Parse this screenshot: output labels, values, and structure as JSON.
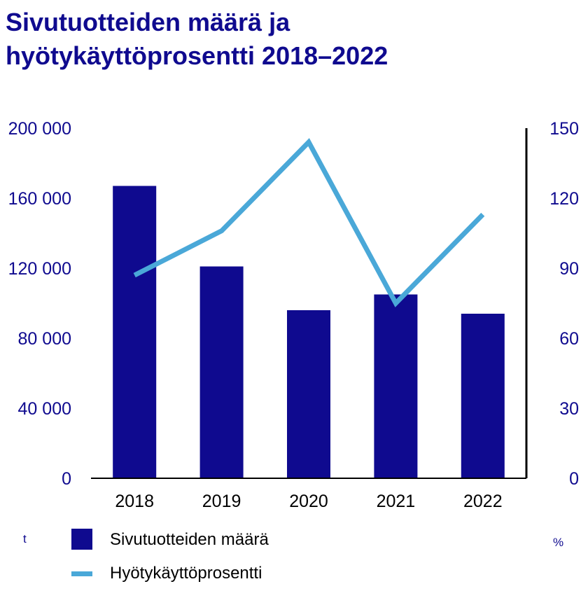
{
  "colors": {
    "title": "#0f0a8f",
    "bar": "#0f0a8f",
    "line": "#4aa8d8",
    "axis": "#000000"
  },
  "chart_data": {
    "type": "bar",
    "title_lines": [
      "Sivutuotteiden määrä ja",
      "hyötykäyttöprosentti 2018–2022"
    ],
    "categories": [
      "2018",
      "2019",
      "2020",
      "2021",
      "2022"
    ],
    "series": [
      {
        "name": "Sivutuotteiden määrä",
        "type": "bar",
        "axis": "left",
        "values": [
          167000,
          121000,
          96000,
          105000,
          94000
        ]
      },
      {
        "name": "Hyötykäyttöprosentti",
        "type": "line",
        "axis": "right",
        "values": [
          87,
          106,
          144,
          75,
          113
        ]
      }
    ],
    "left_axis": {
      "unit": "t",
      "ylim": [
        0,
        200000
      ],
      "ticks": [
        0,
        40000,
        80000,
        120000,
        160000,
        200000
      ],
      "tick_labels": [
        "0",
        "40 000",
        "80 000",
        "120 000",
        "160 000",
        "200 000"
      ]
    },
    "right_axis": {
      "unit": "%",
      "ylim": [
        0,
        150
      ],
      "ticks": [
        0,
        30,
        60,
        90,
        120,
        150
      ],
      "tick_labels": [
        "0",
        "30",
        "60",
        "90",
        "120",
        "150"
      ]
    },
    "grid": false,
    "legend": "bottom-left"
  }
}
